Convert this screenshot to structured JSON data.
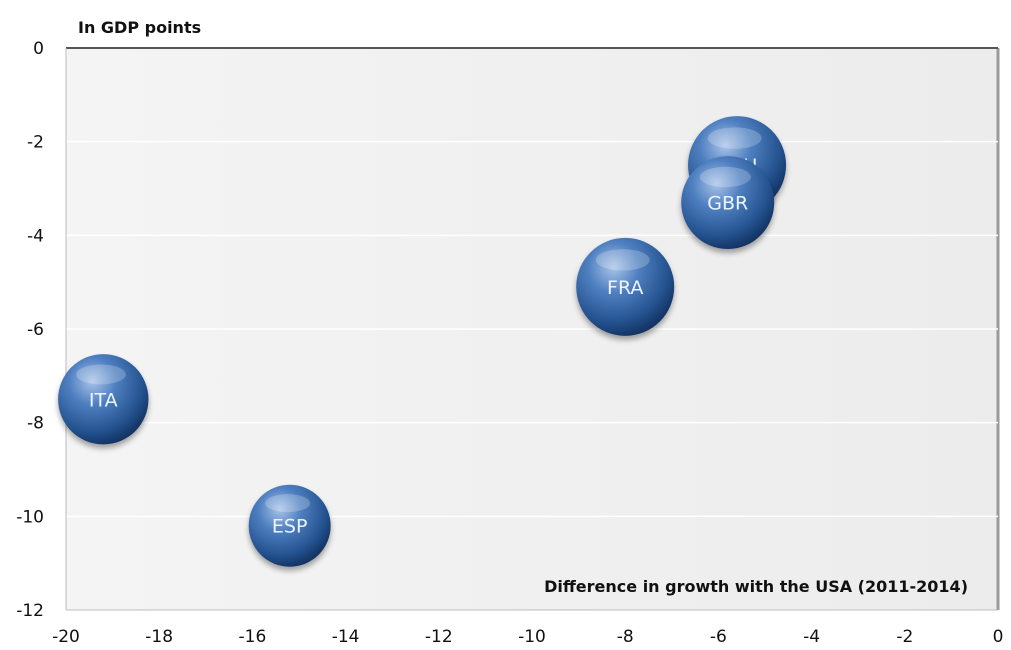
{
  "chart_data": {
    "type": "scatter",
    "title": "",
    "xlabel": "Difference in growth with the USA (2011-2014)",
    "ylabel": "In GDP points",
    "xlim": [
      -20,
      0
    ],
    "ylim": [
      -12,
      0
    ],
    "x_ticks": [
      -20,
      -18,
      -16,
      -14,
      -12,
      -10,
      -8,
      -6,
      -4,
      -2,
      0
    ],
    "y_ticks": [
      0,
      -2,
      -4,
      -6,
      -8,
      -10,
      -12
    ],
    "grid": "horizontal",
    "legend": "none",
    "marker_color": "#2f5f9e",
    "background_color": "#f2f2f2",
    "points": [
      {
        "label": "DEU",
        "x": -5.6,
        "y": -2.5,
        "size": 1.0
      },
      {
        "label": "GBR",
        "x": -5.8,
        "y": -3.3,
        "size": 0.9
      },
      {
        "label": "FRA",
        "x": -8.0,
        "y": -5.1,
        "size": 1.0
      },
      {
        "label": "ITA",
        "x": -19.2,
        "y": -7.5,
        "size": 0.85
      },
      {
        "label": "ESP",
        "x": -15.2,
        "y": -10.2,
        "size": 0.7
      }
    ]
  }
}
